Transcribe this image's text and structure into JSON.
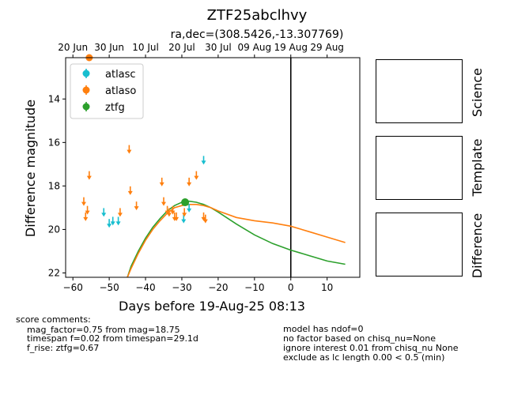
{
  "header": {
    "title": "ZTF25abclhvy",
    "subtitle": "ra,dec=(308.5426,-13.307769)"
  },
  "panels": {
    "science": "Science",
    "template": "Template",
    "difference": "Difference"
  },
  "notes": {
    "left": [
      "score comments:",
      "mag_factor=0.75 from mag=18.75",
      "timespan f=0.02 from timespan=29.1d",
      "f_rise: ztfg=0.67"
    ],
    "right": [
      "model has ndof=0",
      "no factor based on chisq_nu=None",
      "ignore interest 0.01 from chisq_nu None",
      "exclude as lc length 0.00 < 0.5 (min)"
    ]
  },
  "chart_data": {
    "type": "scatter",
    "xlabel": "Days before 19-Aug-25 08:13",
    "ylabel": "Difference magnitude",
    "xlim": [
      -62,
      19
    ],
    "ylim": [
      22.2,
      12.1
    ],
    "y_inverted": true,
    "x_ticks": [
      -60,
      -50,
      -40,
      -30,
      -20,
      -10,
      0,
      10
    ],
    "y_ticks": [
      14,
      16,
      18,
      20,
      22
    ],
    "top_axis_ticks": [
      {
        "label": "20 Jun",
        "day": -60
      },
      {
        "label": "30 Jun",
        "day": -50
      },
      {
        "label": "10 Jul",
        "day": -40
      },
      {
        "label": "20 Jul",
        "day": -30
      },
      {
        "label": "30 Jul",
        "day": -20
      },
      {
        "label": "09 Aug",
        "day": -10
      },
      {
        "label": "19 Aug",
        "day": 0
      },
      {
        "label": "29 Aug",
        "day": 10
      }
    ],
    "vline_x": 0,
    "legend_position": "upper-left",
    "series": [
      {
        "name": "atlasc",
        "color": "#17becf",
        "kind": "upper_limit",
        "points": [
          [
            -51.5,
            19.2
          ],
          [
            -50,
            19.7
          ],
          [
            -49,
            19.6
          ],
          [
            -47.5,
            19.6
          ],
          [
            -29.5,
            19.5
          ],
          [
            -28,
            19.0
          ],
          [
            -24,
            16.8
          ]
        ]
      },
      {
        "name": "atlaso",
        "color": "#ff7f0e",
        "kind": "upper_limit",
        "points": [
          [
            -57,
            18.7
          ],
          [
            -56.5,
            19.4
          ],
          [
            -56,
            19.1
          ],
          [
            -55.5,
            17.5
          ],
          [
            -47,
            19.2
          ],
          [
            -44.5,
            16.3
          ],
          [
            -44.2,
            18.2
          ],
          [
            -42.5,
            18.9
          ],
          [
            -35.5,
            17.8
          ],
          [
            -35,
            18.7
          ],
          [
            -34,
            19.1
          ],
          [
            -33.5,
            19.2
          ],
          [
            -32.5,
            19.1
          ],
          [
            -32,
            19.4
          ],
          [
            -31.5,
            19.4
          ],
          [
            -29.3,
            19.2
          ],
          [
            -28,
            17.8
          ],
          [
            -26,
            17.5
          ],
          [
            -24,
            19.4
          ],
          [
            -23.5,
            19.5
          ]
        ]
      },
      {
        "name": "ztfg",
        "color": "#2ca02c",
        "kind": "detection",
        "points": [
          [
            -29.1,
            18.75
          ]
        ]
      }
    ],
    "detections_offscale": [
      {
        "series": "atlaso",
        "x": -55.5,
        "y": 12.1
      }
    ],
    "models": [
      {
        "name": "ztfg",
        "color": "#2ca02c",
        "x": [
          -45,
          -44,
          -42,
          -40,
          -38,
          -36,
          -34,
          -32,
          -30,
          -28,
          -26,
          -24,
          -22,
          -20,
          -15,
          -10,
          -5,
          0,
          5,
          10,
          15
        ],
        "y": [
          22.2,
          21.7,
          21.0,
          20.4,
          19.9,
          19.5,
          19.15,
          18.9,
          18.75,
          18.7,
          18.75,
          18.85,
          19.0,
          19.2,
          19.75,
          20.25,
          20.65,
          20.95,
          21.2,
          21.45,
          21.6
        ]
      },
      {
        "name": "atlaso",
        "color": "#ff7f0e",
        "x": [
          -45,
          -44,
          -42,
          -40,
          -38,
          -36,
          -34,
          -32,
          -30,
          -28,
          -26,
          -24,
          -22,
          -20,
          -15,
          -10,
          -5,
          0,
          5,
          10,
          15
        ],
        "y": [
          22.2,
          21.8,
          21.1,
          20.5,
          20.0,
          19.6,
          19.25,
          19.0,
          18.9,
          18.85,
          18.85,
          18.9,
          19.0,
          19.15,
          19.45,
          19.6,
          19.7,
          19.85,
          20.1,
          20.35,
          20.6
        ]
      }
    ]
  }
}
